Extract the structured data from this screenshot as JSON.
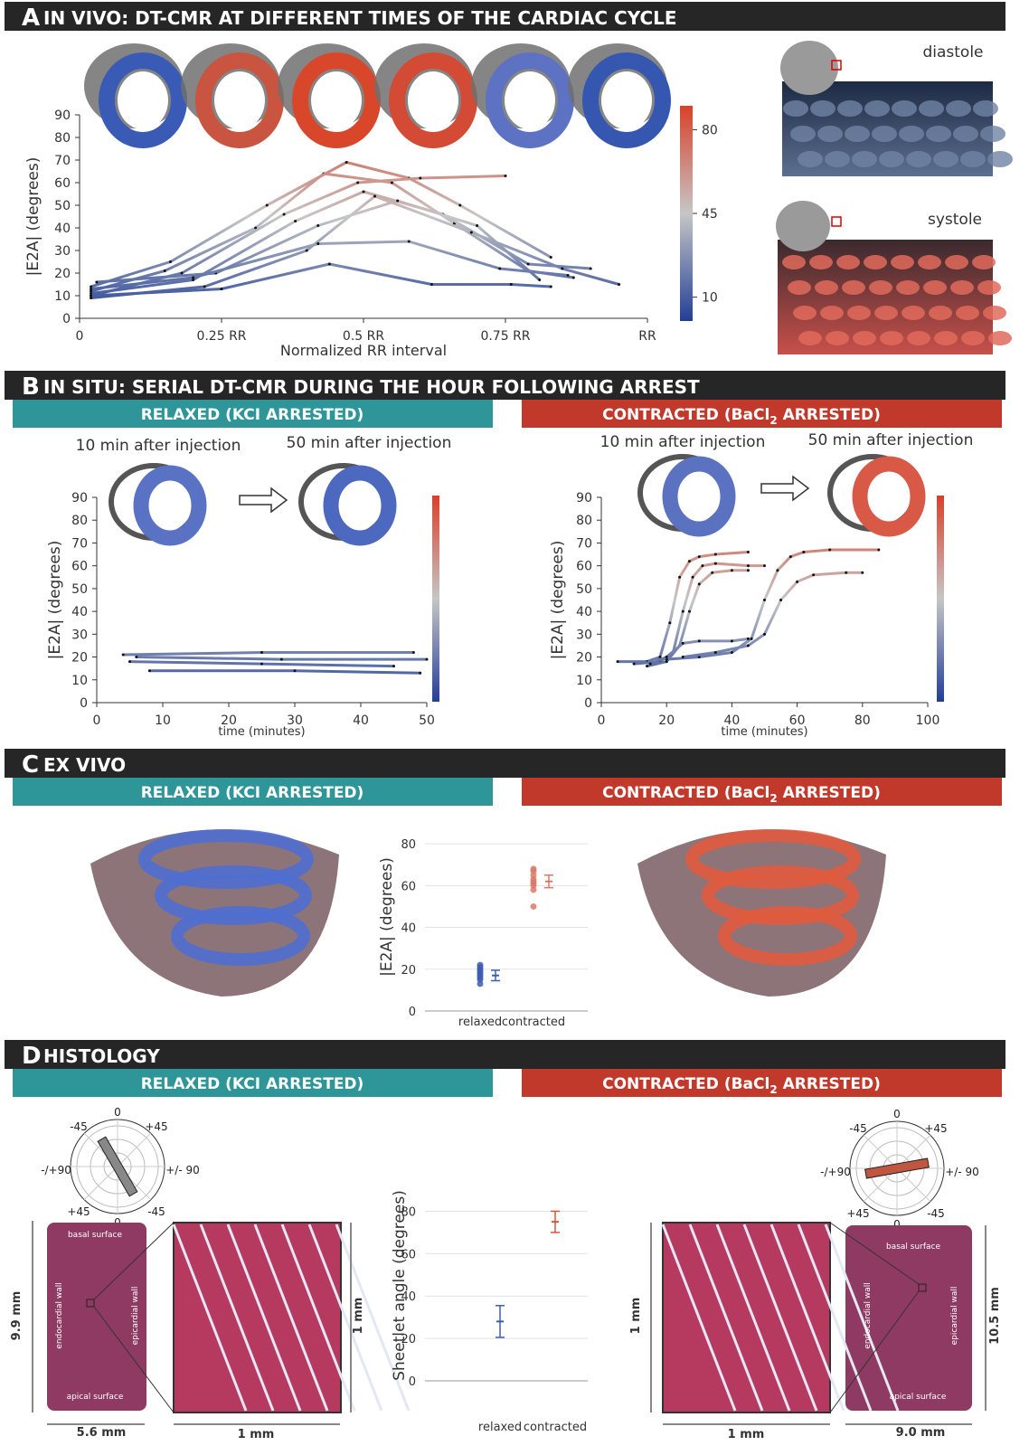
{
  "panels": [
    {
      "letter": "A",
      "title": "IN VIVO: DT-CMR AT DIFFERENT TIMES OF THE CARDIAC CYCLE",
      "labels": [
        "diastole",
        "systole"
      ]
    },
    {
      "letter": "B",
      "title": "IN SITU: SERIAL DT-CMR DURING THE HOUR FOLLOWING ARREST",
      "relaxed": "RELAXED (KCI ARRESTED)",
      "contracted": [
        "CONTRACTED (BaCl",
        "2",
        " ARRESTED)"
      ],
      "captions": [
        "10 min after injection",
        "50 min after injection",
        "10 min after injection",
        "50 min after injection"
      ]
    },
    {
      "letter": "C",
      "title": "EX VIVO",
      "relaxed": "RELAXED (KCI ARRESTED)",
      "contracted": [
        "CONTRACTED (BaCl",
        "2",
        " ARRESTED)"
      ]
    },
    {
      "letter": "D",
      "title": "HISTOLOGY",
      "relaxed": "RELAXED (KCI ARRESTED)",
      "contracted": [
        "CONTRACTED (BaCl",
        "2",
        " ARRESTED)"
      ],
      "polar_labels": [
        [
          "0",
          "-45",
          "+45",
          "-/+90",
          "+/- 90",
          "+45",
          "-45",
          "0"
        ],
        [
          "0",
          "-45",
          "+45",
          "-/+90",
          "+/- 90",
          "+45",
          "-45",
          "0"
        ]
      ],
      "histology_labels": [
        [
          "basal surface",
          "endocardial wall",
          "epicardial wall",
          "apical surface"
        ],
        [
          "basal surface",
          "endocardial wall",
          "epicardial wall",
          "apical surface"
        ]
      ],
      "scales": [
        [
          "9.9 mm",
          "5.6 mm",
          "1 mm",
          "1 mm"
        ],
        [
          "1 mm",
          "1 mm",
          "10.5 mm",
          "9.0 mm"
        ]
      ]
    }
  ],
  "chart_data": [
    {
      "type": "line",
      "xlabel": "Normalized RR interval",
      "ylabel": "|E2A| (degrees)",
      "xlim": [
        0,
        1
      ],
      "xticks": [
        0,
        {
          "value": 0.25,
          "label": "0.25 RR"
        },
        {
          "value": 0.5,
          "label": "0.5 RR"
        },
        {
          "value": 0.75,
          "label": "0.75 RR"
        },
        {
          "value": 1,
          "label": "RR"
        }
      ],
      "ylim": [
        0,
        90
      ],
      "yticks": [
        0,
        10,
        20,
        30,
        40,
        50,
        60,
        70,
        80,
        90
      ],
      "colors": [
        "#223f96",
        "#c6c6c6",
        "#d8412a"
      ],
      "colorbar": true,
      "colorbar_ticks": [
        10,
        45,
        80
      ],
      "series": [
        {
          "x": [
            0.02,
            0.15,
            0.31,
            0.43,
            0.55,
            0.66,
            0.79,
            0.87
          ],
          "values": [
            12,
            21,
            40,
            64,
            60,
            42,
            21,
            18
          ]
        },
        {
          "x": [
            0.02,
            0.16,
            0.33,
            0.47,
            0.58,
            0.67,
            0.83
          ],
          "values": [
            14,
            25,
            50,
            69,
            62,
            50,
            27
          ]
        },
        {
          "x": [
            0.02,
            0.18,
            0.36,
            0.49,
            0.6,
            0.75
          ],
          "values": [
            10,
            20,
            46,
            60,
            62,
            63
          ]
        },
        {
          "x": [
            0.02,
            0.2,
            0.38,
            0.5,
            0.64,
            0.79,
            0.9
          ],
          "values": [
            11,
            17,
            43,
            56,
            46,
            24,
            22
          ]
        },
        {
          "x": [
            0.02,
            0.22,
            0.4,
            0.52,
            0.69,
            0.85,
            0.95
          ],
          "values": [
            9,
            14,
            30,
            54,
            38,
            22,
            15
          ]
        },
        {
          "x": [
            0.03,
            0.24,
            0.42,
            0.56,
            0.7,
            0.81
          ],
          "values": [
            16,
            20,
            41,
            52,
            41,
            17
          ]
        },
        {
          "x": [
            0.02,
            0.2,
            0.42,
            0.58,
            0.74,
            0.86
          ],
          "values": [
            13,
            18,
            33,
            34,
            22,
            19
          ]
        },
        {
          "x": [
            0.02,
            0.25,
            0.44,
            0.62,
            0.76,
            0.83
          ],
          "values": [
            10,
            13,
            24,
            15,
            15,
            14
          ]
        }
      ]
    },
    {
      "type": "line",
      "xlabel": "time (minutes)",
      "ylabel": "|E2A| (degrees)",
      "xlim": [
        0,
        50
      ],
      "xticks": [
        0,
        10,
        20,
        30,
        40,
        50
      ],
      "ylim": [
        0,
        90
      ],
      "yticks": [
        0,
        10,
        20,
        30,
        40,
        50,
        60,
        70,
        80,
        90
      ],
      "colors": [
        "#223f96",
        "#c6c6c6",
        "#d8412a"
      ],
      "colorbar": true,
      "series": [
        {
          "x": [
            4,
            25,
            48
          ],
          "values": [
            21,
            22,
            22
          ]
        },
        {
          "x": [
            6,
            28,
            50
          ],
          "values": [
            20,
            19,
            19
          ]
        },
        {
          "x": [
            5,
            25,
            45
          ],
          "values": [
            18,
            17,
            16
          ]
        },
        {
          "x": [
            8,
            30,
            49
          ],
          "values": [
            14,
            14,
            13
          ]
        }
      ]
    },
    {
      "type": "line",
      "xlabel": "time (minutes)",
      "ylabel": "|E2A| (degrees)",
      "xlim": [
        0,
        100
      ],
      "xticks": [
        0,
        20,
        40,
        60,
        80,
        100
      ],
      "ylim": [
        0,
        90
      ],
      "yticks": [
        0,
        10,
        20,
        30,
        40,
        50,
        60,
        70,
        80,
        90
      ],
      "colors": [
        "#223f96",
        "#c6c6c6",
        "#d8412a"
      ],
      "colorbar": true,
      "series": [
        {
          "x": [
            5,
            14,
            18,
            21,
            24,
            27,
            30,
            35,
            45
          ],
          "values": [
            18,
            18,
            20,
            35,
            55,
            62,
            64,
            65,
            66
          ]
        },
        {
          "x": [
            10,
            18,
            22,
            25,
            28,
            31,
            35,
            45,
            50
          ],
          "values": [
            17,
            18,
            22,
            40,
            55,
            60,
            61,
            60,
            60
          ]
        },
        {
          "x": [
            14,
            20,
            24,
            27,
            30,
            34,
            40,
            45
          ],
          "values": [
            16,
            18,
            25,
            40,
            52,
            57,
            58,
            58
          ]
        },
        {
          "x": [
            20,
            30,
            40,
            46,
            50,
            54,
            58,
            62,
            70,
            85
          ],
          "values": [
            19,
            20,
            22,
            28,
            45,
            58,
            64,
            66,
            67,
            67
          ]
        },
        {
          "x": [
            25,
            35,
            45,
            50,
            55,
            60,
            65,
            75,
            80
          ],
          "values": [
            20,
            22,
            25,
            30,
            45,
            53,
            56,
            57,
            57
          ]
        },
        {
          "x": [
            15,
            20,
            25,
            30,
            40,
            45
          ],
          "values": [
            17,
            20,
            26,
            27,
            27,
            28
          ]
        }
      ]
    },
    {
      "type": "strip",
      "ylabel": "|E2A| (degrees)",
      "categories": [
        "relaxed",
        "contracted"
      ],
      "ylim": [
        0,
        90
      ],
      "yticks": [
        0,
        20,
        40,
        60,
        80
      ],
      "grid": true,
      "colors": [
        "#3d5cb3",
        "#d97a68"
      ],
      "points": [
        [
          13,
          15,
          16,
          17,
          18,
          19,
          20,
          21,
          22
        ],
        [
          50,
          58,
          60,
          61,
          62,
          63,
          65,
          67,
          68
        ]
      ],
      "means": [
        17,
        62
      ],
      "errors": [
        2.5,
        3
      ]
    },
    {
      "type": "errorbar",
      "ylabel": "Sheetlet angle (degrees)",
      "categories": [
        "relaxed",
        "contracted"
      ],
      "ylim": [
        0,
        90
      ],
      "yticks": [
        0,
        20,
        40,
        60,
        80
      ],
      "grid": true,
      "colors": [
        "#3d5cb3",
        "#d9553a"
      ],
      "means": [
        28,
        75
      ],
      "errors": [
        7.5,
        5
      ]
    }
  ]
}
